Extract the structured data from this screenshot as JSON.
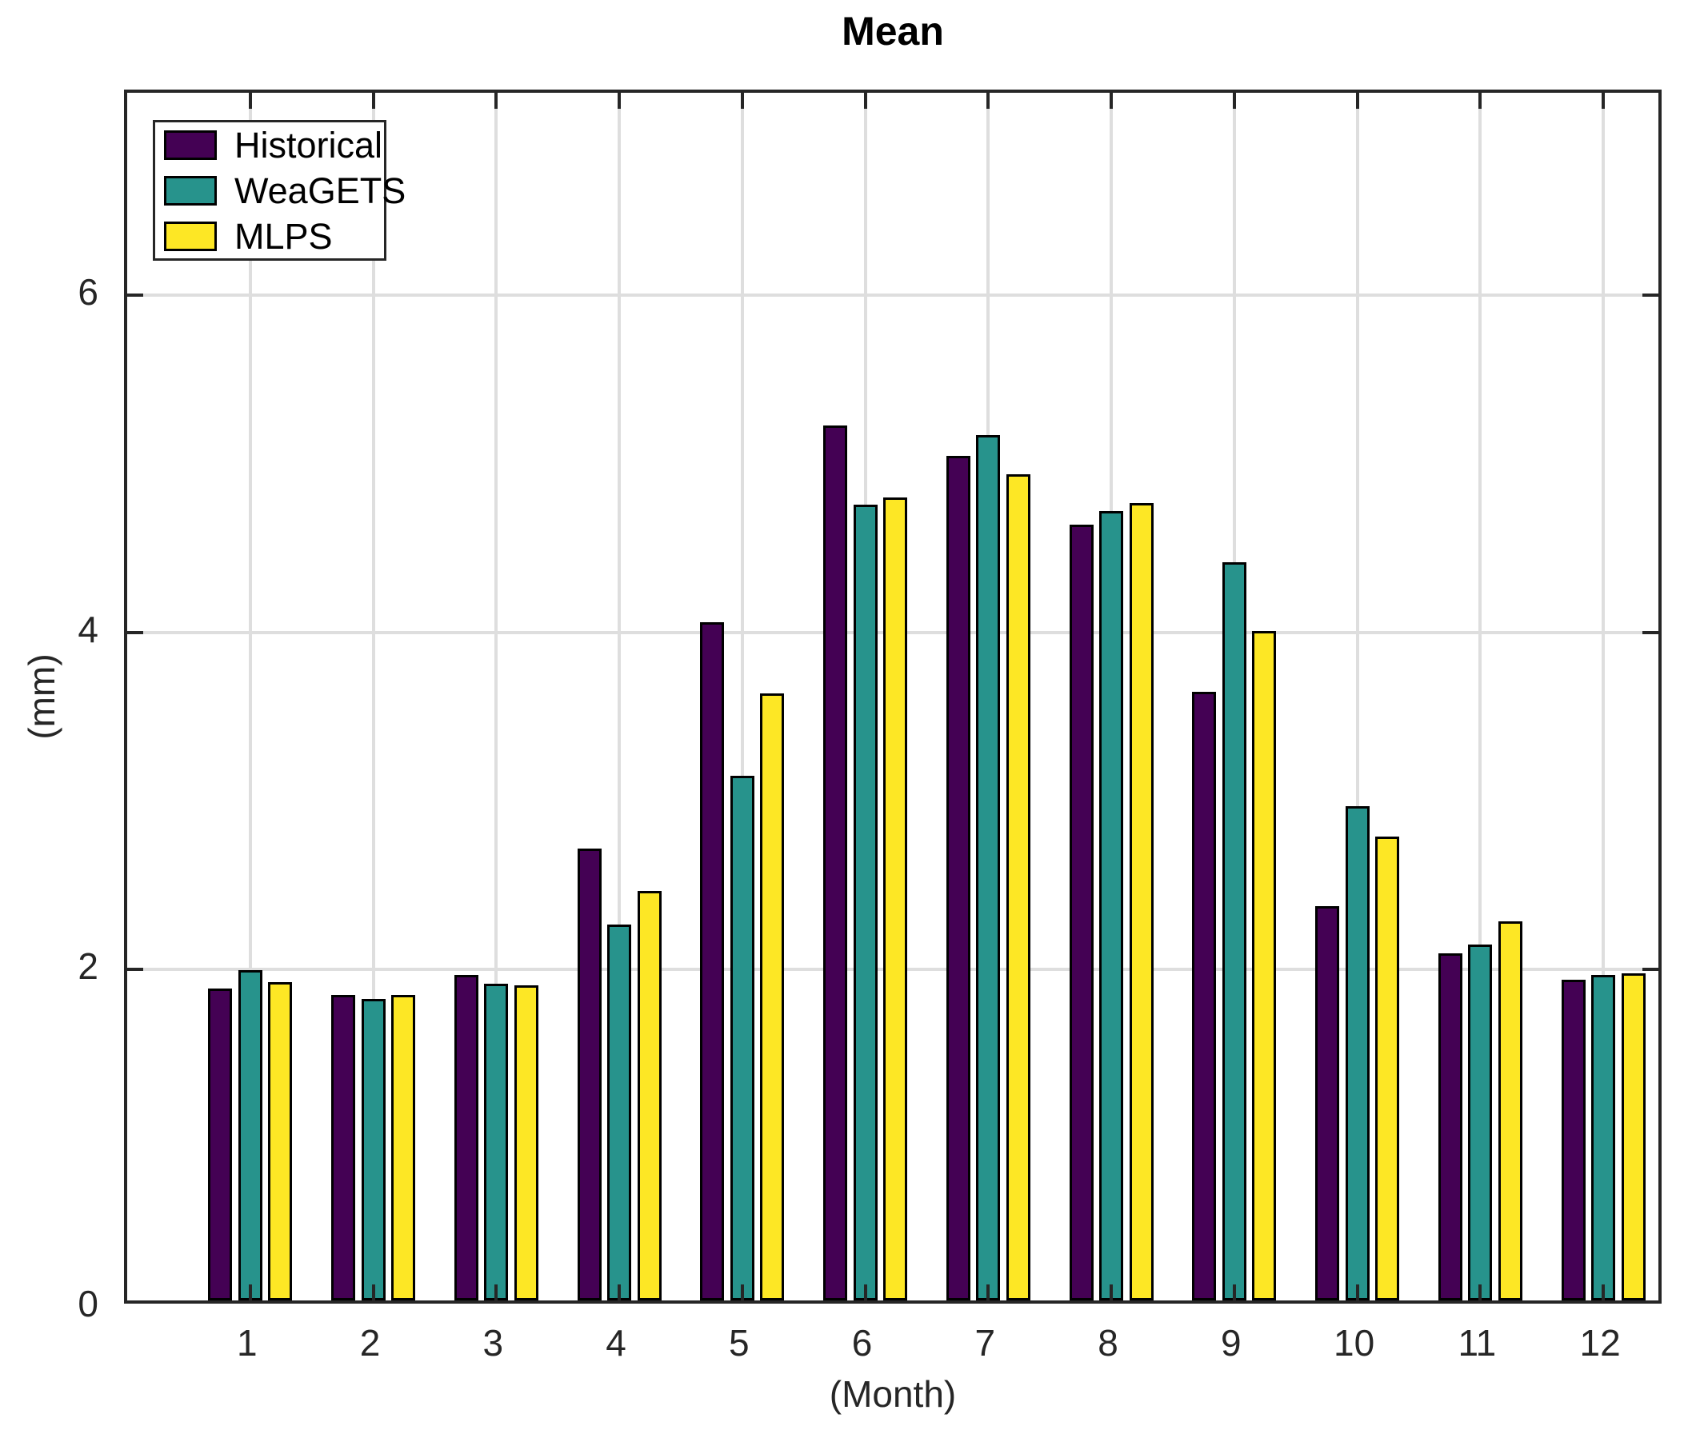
{
  "title": "Mean",
  "xlabel": "(Month)",
  "ylabel": "(mm)",
  "colors": {
    "historical": "#440154",
    "weagets": "#27938c",
    "mlps": "#fde725",
    "bar_edge": "#000000",
    "axis": "#262626",
    "grid": "#dedede",
    "background": "#ffffff"
  },
  "legend": {
    "position": "top-left",
    "items": [
      "Historical",
      "WeaGETS",
      "MLPS"
    ]
  },
  "axes": {
    "y_ticks": [
      0,
      2,
      4,
      6
    ],
    "x_ticks": [
      1,
      2,
      3,
      4,
      5,
      6,
      7,
      8,
      9,
      10,
      11,
      12
    ],
    "ylim": [
      0,
      7.2
    ],
    "xlim": [
      0,
      12.5
    ],
    "grid": "on",
    "box": "on"
  },
  "chart_data": {
    "type": "bar",
    "title": "Mean",
    "xlabel": "(Month)",
    "ylabel": "(mm)",
    "categories": [
      1,
      2,
      3,
      4,
      5,
      6,
      7,
      8,
      9,
      10,
      11,
      12
    ],
    "series": [
      {
        "name": "Historical",
        "color": "#440154",
        "values": [
          1.85,
          1.81,
          1.93,
          2.68,
          4.02,
          5.19,
          5.01,
          4.6,
          3.61,
          2.34,
          2.06,
          1.9
        ]
      },
      {
        "name": "WeaGETS",
        "color": "#27938c",
        "values": [
          1.96,
          1.79,
          1.88,
          2.23,
          3.11,
          4.72,
          5.13,
          4.68,
          4.38,
          2.93,
          2.11,
          1.93
        ]
      },
      {
        "name": "MLPS",
        "color": "#fde725",
        "values": [
          1.89,
          1.81,
          1.87,
          2.43,
          3.6,
          4.76,
          4.9,
          4.73,
          3.97,
          2.75,
          2.25,
          1.94
        ]
      }
    ],
    "ylim": [
      0,
      7.2
    ],
    "grid": true,
    "legend_position": "top-left"
  }
}
